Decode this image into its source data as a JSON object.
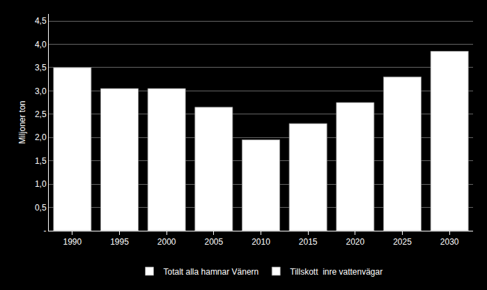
{
  "chart_data": {
    "type": "bar",
    "categories": [
      "1990",
      "1995",
      "2000",
      "2005",
      "2010",
      "2015",
      "2020",
      "2025",
      "2030"
    ],
    "series": [
      {
        "name": "Totalt alla hamnar Vänern",
        "color": "#ffffff",
        "values": [
          3.5,
          3.05,
          3.05,
          2.65,
          1.95,
          2.3,
          2.75,
          3.3,
          3.85
        ]
      },
      {
        "name": "Tillskott  inre vattenvägar",
        "color": "#ffffff",
        "values": [
          null,
          null,
          null,
          null,
          null,
          null,
          null,
          null,
          null
        ]
      }
    ],
    "ylabel": "Miljoner ton",
    "ylim": [
      0,
      4.65
    ],
    "yticks": [
      {
        "value": 0,
        "label": "-"
      },
      {
        "value": 0.5,
        "label": "0,5"
      },
      {
        "value": 1.0,
        "label": "1,0"
      },
      {
        "value": 1.5,
        "label": "1,5"
      },
      {
        "value": 2.0,
        "label": "2,0"
      },
      {
        "value": 2.5,
        "label": "2,5"
      },
      {
        "value": 3.0,
        "label": "3,0"
      },
      {
        "value": 3.5,
        "label": "3,5"
      },
      {
        "value": 4.0,
        "label": "4,0"
      },
      {
        "value": 4.5,
        "label": "4,5"
      }
    ],
    "grid": true,
    "legend": "bottom"
  }
}
